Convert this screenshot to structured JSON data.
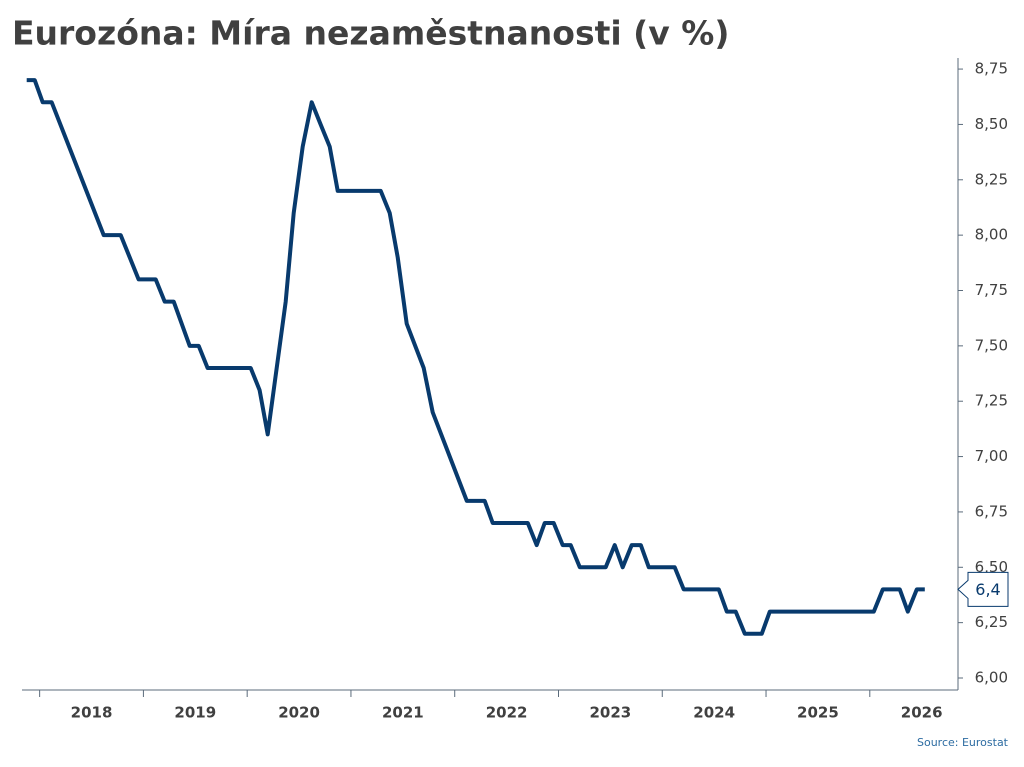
{
  "chart_data": {
    "type": "line",
    "title": "Eurozóna: Míra nezaměstnanosti (v %)",
    "source": "Source: Eurostat",
    "xlim": [
      2017.83,
      2026.85
    ],
    "xticks": [
      2018,
      2019,
      2020,
      2021,
      2022,
      2023,
      2024,
      2025,
      2026
    ],
    "ylim": [
      6.0,
      8.8
    ],
    "yticks": [
      {
        "value": 6.0,
        "label": "6,00"
      },
      {
        "value": 6.25,
        "label": "6,25"
      },
      {
        "value": 6.5,
        "label": "6,50"
      },
      {
        "value": 6.75,
        "label": "6,75"
      },
      {
        "value": 7.0,
        "label": "7,00"
      },
      {
        "value": 7.25,
        "label": "7,25"
      },
      {
        "value": 7.5,
        "label": "7,50"
      },
      {
        "value": 7.75,
        "label": "7,75"
      },
      {
        "value": 8.0,
        "label": "8,00"
      },
      {
        "value": 8.25,
        "label": "8,25"
      },
      {
        "value": 8.5,
        "label": "8,50"
      },
      {
        "value": 8.75,
        "label": "8,75"
      }
    ],
    "grid": false,
    "x": [
      2017.875,
      2017.952,
      2018.029,
      2018.116,
      2018.617,
      2018.781,
      2018.954,
      2019.118,
      2019.205,
      2019.292,
      2019.446,
      2019.533,
      2019.619,
      2020.034,
      2020.12,
      2020.198,
      2020.371,
      2020.448,
      2020.535,
      2020.622,
      2020.708,
      2020.795,
      2020.872,
      2021.287,
      2021.373,
      2021.451,
      2021.537,
      2021.701,
      2021.788,
      2022.116,
      2022.289,
      2022.366,
      2022.704,
      2022.79,
      2022.867,
      2022.954,
      2023.041,
      2023.118,
      2023.205,
      2023.455,
      2023.542,
      2023.619,
      2023.706,
      2023.793,
      2023.87,
      2024.12,
      2024.207,
      2024.545,
      2024.622,
      2024.708,
      2024.795,
      2024.959,
      2025.036,
      2026.039,
      2026.125,
      2026.289,
      2026.366,
      2026.453,
      2026.53
    ],
    "series": [
      {
        "color": "#083a6d",
        "values": [
          8.7,
          8.7,
          8.6,
          8.6,
          8.0,
          8.0,
          7.8,
          7.8,
          7.7,
          7.7,
          7.5,
          7.5,
          7.4,
          7.4,
          7.3,
          7.1,
          7.7,
          8.1,
          8.4,
          8.6,
          8.5,
          8.4,
          8.2,
          8.2,
          8.1,
          7.9,
          7.6,
          7.4,
          7.2,
          6.8,
          6.8,
          6.7,
          6.7,
          6.6,
          6.7,
          6.7,
          6.6,
          6.6,
          6.5,
          6.5,
          6.6,
          6.5,
          6.6,
          6.6,
          6.5,
          6.5,
          6.4,
          6.4,
          6.3,
          6.3,
          6.2,
          6.2,
          6.3,
          6.3,
          6.4,
          6.4,
          6.3,
          6.4,
          6.4
        ],
        "value_labels": [
          null,
          null,
          null,
          null,
          null,
          null,
          null,
          null,
          null,
          null,
          null,
          null,
          null,
          null,
          null,
          null,
          null,
          null,
          null,
          null,
          null,
          null,
          null,
          null,
          null,
          null,
          null,
          null,
          null,
          null,
          null,
          null,
          null,
          null,
          null,
          null,
          null,
          null,
          null,
          null,
          null,
          null,
          null,
          null,
          null,
          null,
          null,
          null,
          null,
          null,
          null,
          null,
          null,
          null,
          null,
          null,
          null,
          null,
          "6,4"
        ]
      }
    ]
  }
}
